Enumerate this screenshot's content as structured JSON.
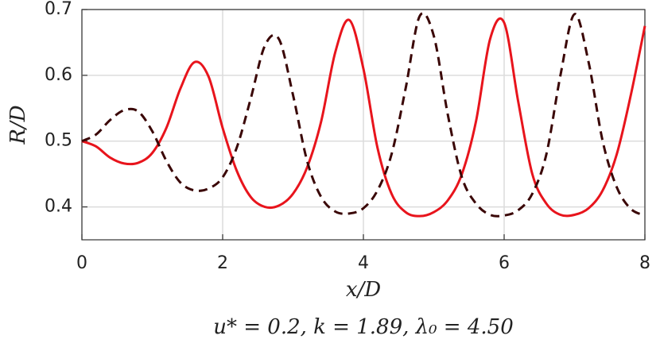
{
  "chart_data": {
    "type": "line",
    "xlabel": "x/D",
    "ylabel": "R/D",
    "caption": "u* = 0.2, k = 1.89, λ₀ = 4.50",
    "x": [
      0,
      0.2,
      0.4,
      0.6,
      0.8,
      1.0,
      1.2,
      1.4,
      1.6,
      1.8,
      2.0,
      2.2,
      2.4,
      2.6,
      2.8,
      3.0,
      3.2,
      3.4,
      3.6,
      3.8,
      4.0,
      4.2,
      4.4,
      4.6,
      4.8,
      5.0,
      5.2,
      5.4,
      5.6,
      5.8,
      6.0,
      6.2,
      6.4,
      6.6,
      6.8,
      7.0,
      7.2,
      7.4,
      7.6,
      7.8,
      8.0
    ],
    "series": [
      {
        "color": "#e8141c",
        "dash": false,
        "values": [
          0.5,
          0.492,
          0.475,
          0.466,
          0.467,
          0.482,
          0.52,
          0.58,
          0.62,
          0.598,
          0.52,
          0.455,
          0.415,
          0.4,
          0.402,
          0.42,
          0.46,
          0.53,
          0.635,
          0.684,
          0.61,
          0.49,
          0.42,
          0.392,
          0.386,
          0.392,
          0.41,
          0.45,
          0.53,
          0.655,
          0.68,
          0.56,
          0.45,
          0.405,
          0.388,
          0.388,
          0.398,
          0.425,
          0.48,
          0.57,
          0.675
        ]
      },
      {
        "color": "#3a0606",
        "dash": true,
        "values": [
          0.5,
          0.51,
          0.532,
          0.547,
          0.545,
          0.515,
          0.47,
          0.437,
          0.425,
          0.428,
          0.445,
          0.49,
          0.565,
          0.645,
          0.655,
          0.57,
          0.47,
          0.415,
          0.393,
          0.39,
          0.398,
          0.425,
          0.48,
          0.58,
          0.69,
          0.66,
          0.54,
          0.445,
          0.405,
          0.388,
          0.387,
          0.395,
          0.42,
          0.48,
          0.6,
          0.693,
          0.62,
          0.5,
          0.43,
          0.397,
          0.387
        ]
      }
    ],
    "xlim": [
      0,
      8
    ],
    "ylim": [
      0.35,
      0.7
    ],
    "xticks": [
      0,
      2,
      4,
      6,
      8
    ],
    "yticks": [
      0.4,
      0.5,
      0.6,
      0.7
    ],
    "grid": true
  }
}
